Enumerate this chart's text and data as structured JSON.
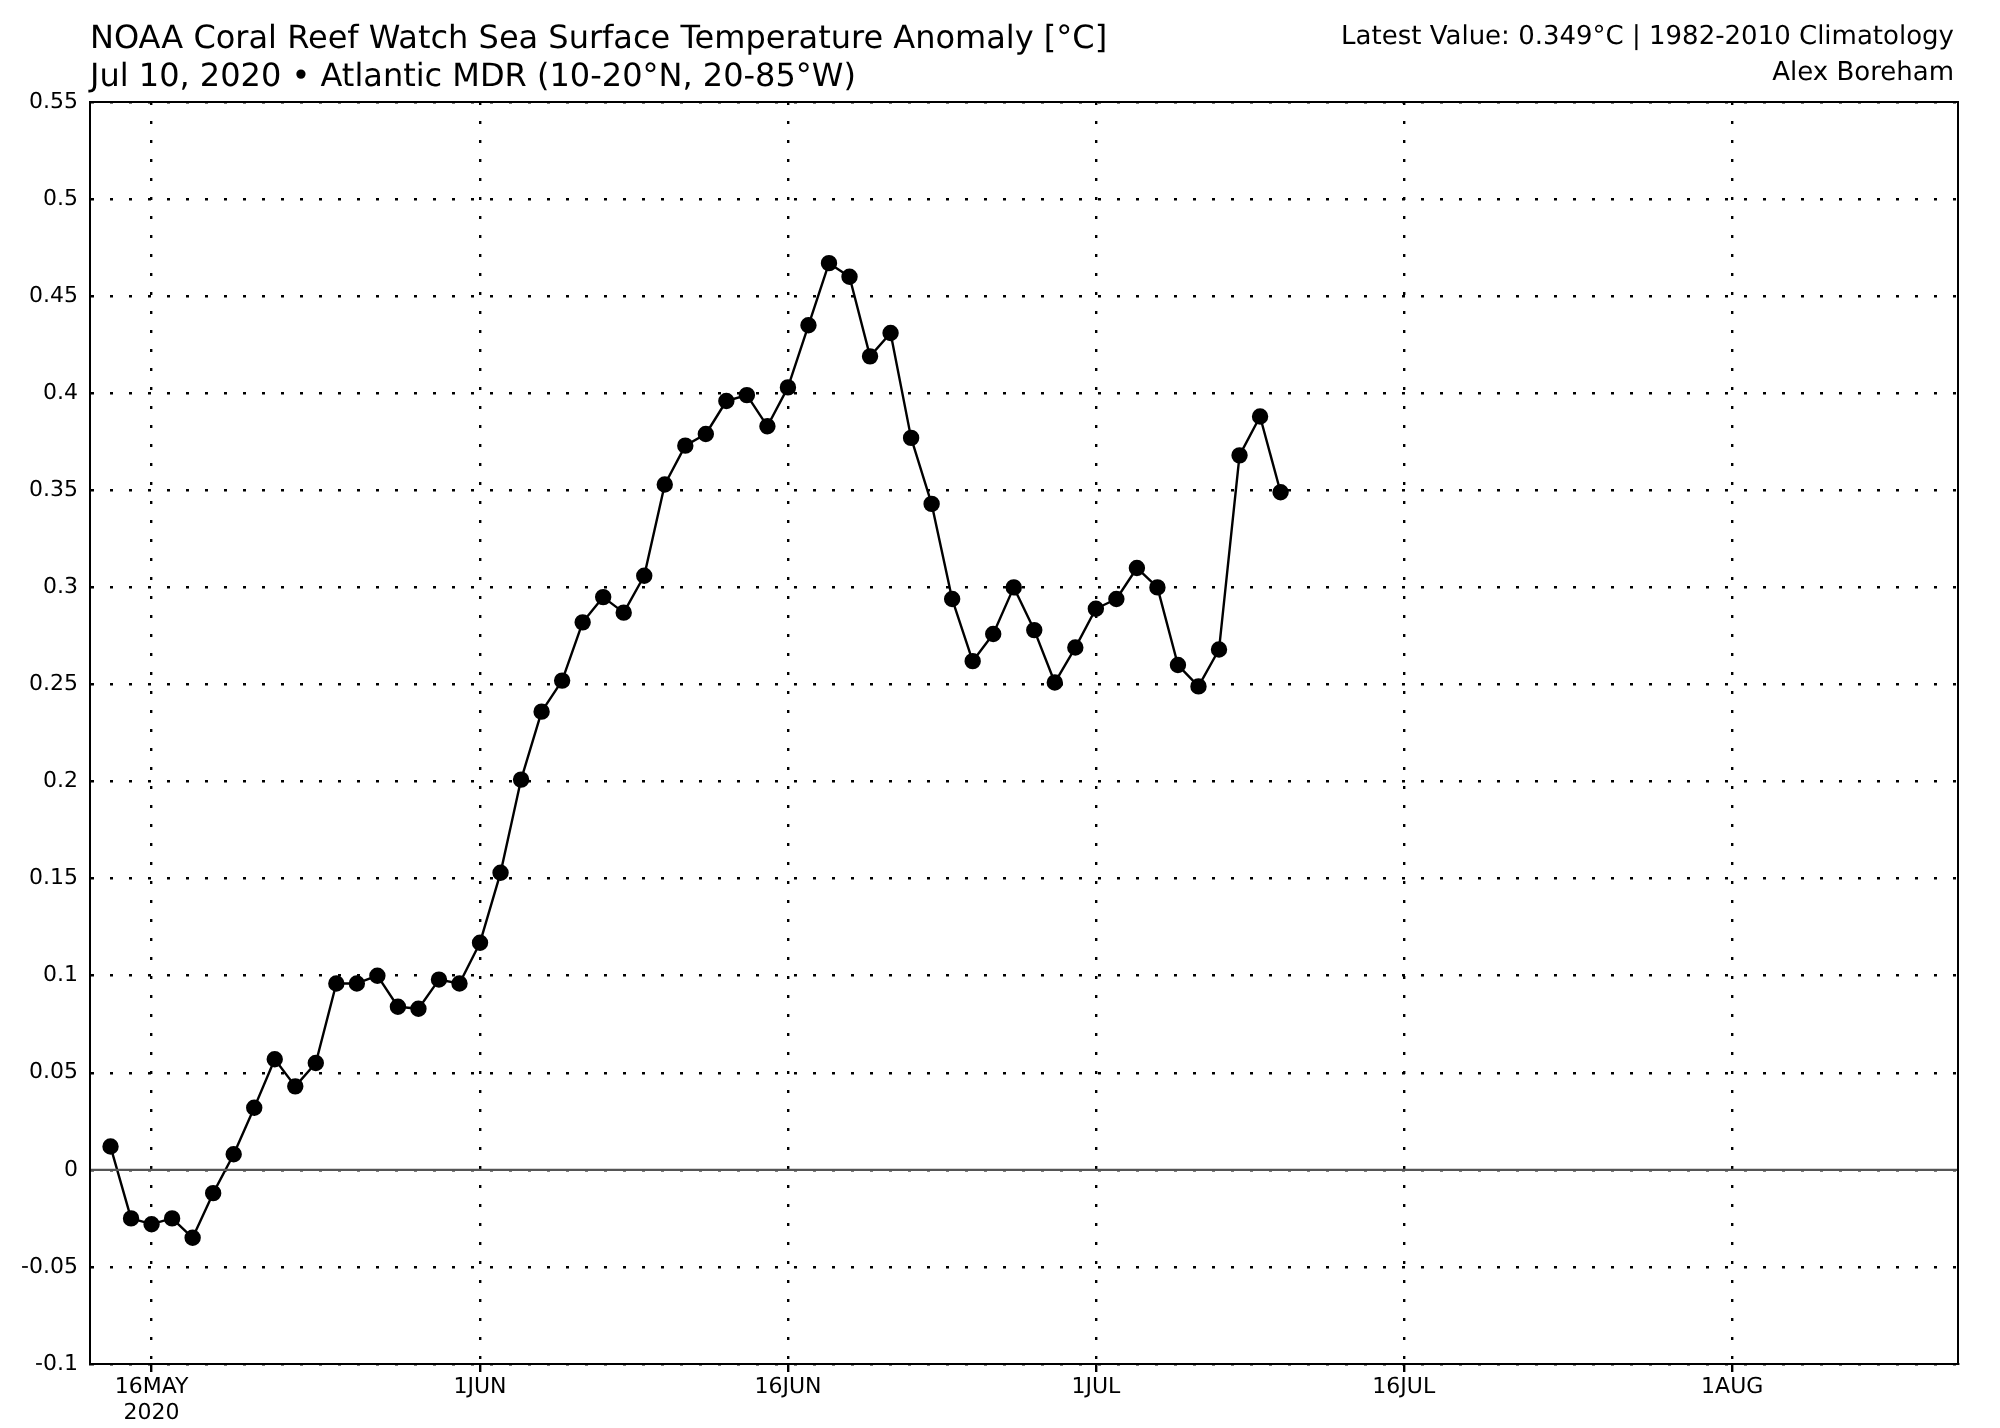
{
  "chart_data": {
    "type": "line",
    "title": "NOAA Coral Reef Watch Sea Surface Temperature Anomaly [°C]",
    "subtitle": "Jul 10, 2020 • Atlantic MDR (10-20°N, 20-85°W)",
    "annotations": [
      "Latest Value: 0.349°C | 1982-2010 Climatology",
      "Alex Boreham"
    ],
    "x": [
      "2020-05-14",
      "2020-05-15",
      "2020-05-16",
      "2020-05-17",
      "2020-05-18",
      "2020-05-19",
      "2020-05-20",
      "2020-05-21",
      "2020-05-22",
      "2020-05-23",
      "2020-05-24",
      "2020-05-25",
      "2020-05-26",
      "2020-05-27",
      "2020-05-28",
      "2020-05-29",
      "2020-05-30",
      "2020-05-31",
      "2020-06-01",
      "2020-06-02",
      "2020-06-03",
      "2020-06-04",
      "2020-06-05",
      "2020-06-06",
      "2020-06-07",
      "2020-06-08",
      "2020-06-09",
      "2020-06-10",
      "2020-06-11",
      "2020-06-12",
      "2020-06-13",
      "2020-06-14",
      "2020-06-15",
      "2020-06-16",
      "2020-06-17",
      "2020-06-18",
      "2020-06-19",
      "2020-06-20",
      "2020-06-21",
      "2020-06-22",
      "2020-06-23",
      "2020-06-24",
      "2020-06-25",
      "2020-06-26",
      "2020-06-27",
      "2020-06-28",
      "2020-06-29",
      "2020-06-30",
      "2020-07-01",
      "2020-07-02",
      "2020-07-03",
      "2020-07-04",
      "2020-07-05",
      "2020-07-06",
      "2020-07-07",
      "2020-07-08",
      "2020-07-09",
      "2020-07-10"
    ],
    "series": [
      {
        "color": "#000000",
        "values": [
          0.012,
          -0.025,
          -0.028,
          -0.025,
          -0.035,
          -0.012,
          0.008,
          0.032,
          0.057,
          0.043,
          0.055,
          0.096,
          0.096,
          0.1,
          0.084,
          0.083,
          0.098,
          0.096,
          0.117,
          0.153,
          0.201,
          0.236,
          0.252,
          0.282,
          0.295,
          0.287,
          0.306,
          0.353,
          0.373,
          0.379,
          0.396,
          0.399,
          0.383,
          0.403,
          0.435,
          0.467,
          0.46,
          0.419,
          0.431,
          0.377,
          0.343,
          0.294,
          0.262,
          0.276,
          0.3,
          0.278,
          0.251,
          0.269,
          0.289,
          0.294,
          0.31,
          0.3,
          0.26,
          0.249,
          0.268,
          0.368,
          0.388,
          0.349
        ]
      }
    ],
    "xlim": [
      "2020-05-13",
      "2020-08-12"
    ],
    "xticks": [
      {
        "value": "2020-05-16",
        "label": "16MAY\n2020"
      },
      {
        "value": "2020-06-01",
        "label": "1JUN"
      },
      {
        "value": "2020-06-16",
        "label": "16JUN"
      },
      {
        "value": "2020-07-01",
        "label": "1JUL"
      },
      {
        "value": "2020-07-16",
        "label": "16JUL"
      },
      {
        "value": "2020-08-01",
        "label": "1AUG"
      }
    ],
    "ylim": [
      -0.1,
      0.55
    ],
    "yticks": [
      -0.1,
      -0.05,
      0,
      0.05,
      0.1,
      0.15,
      0.2,
      0.25,
      0.3,
      0.35,
      0.4,
      0.45,
      0.5,
      0.55
    ],
    "ref_lines": [
      {
        "axis": "y",
        "value": 0,
        "color": "#555555"
      }
    ],
    "grid": true,
    "legend": false,
    "marker": "circle",
    "line_style": "solid"
  }
}
